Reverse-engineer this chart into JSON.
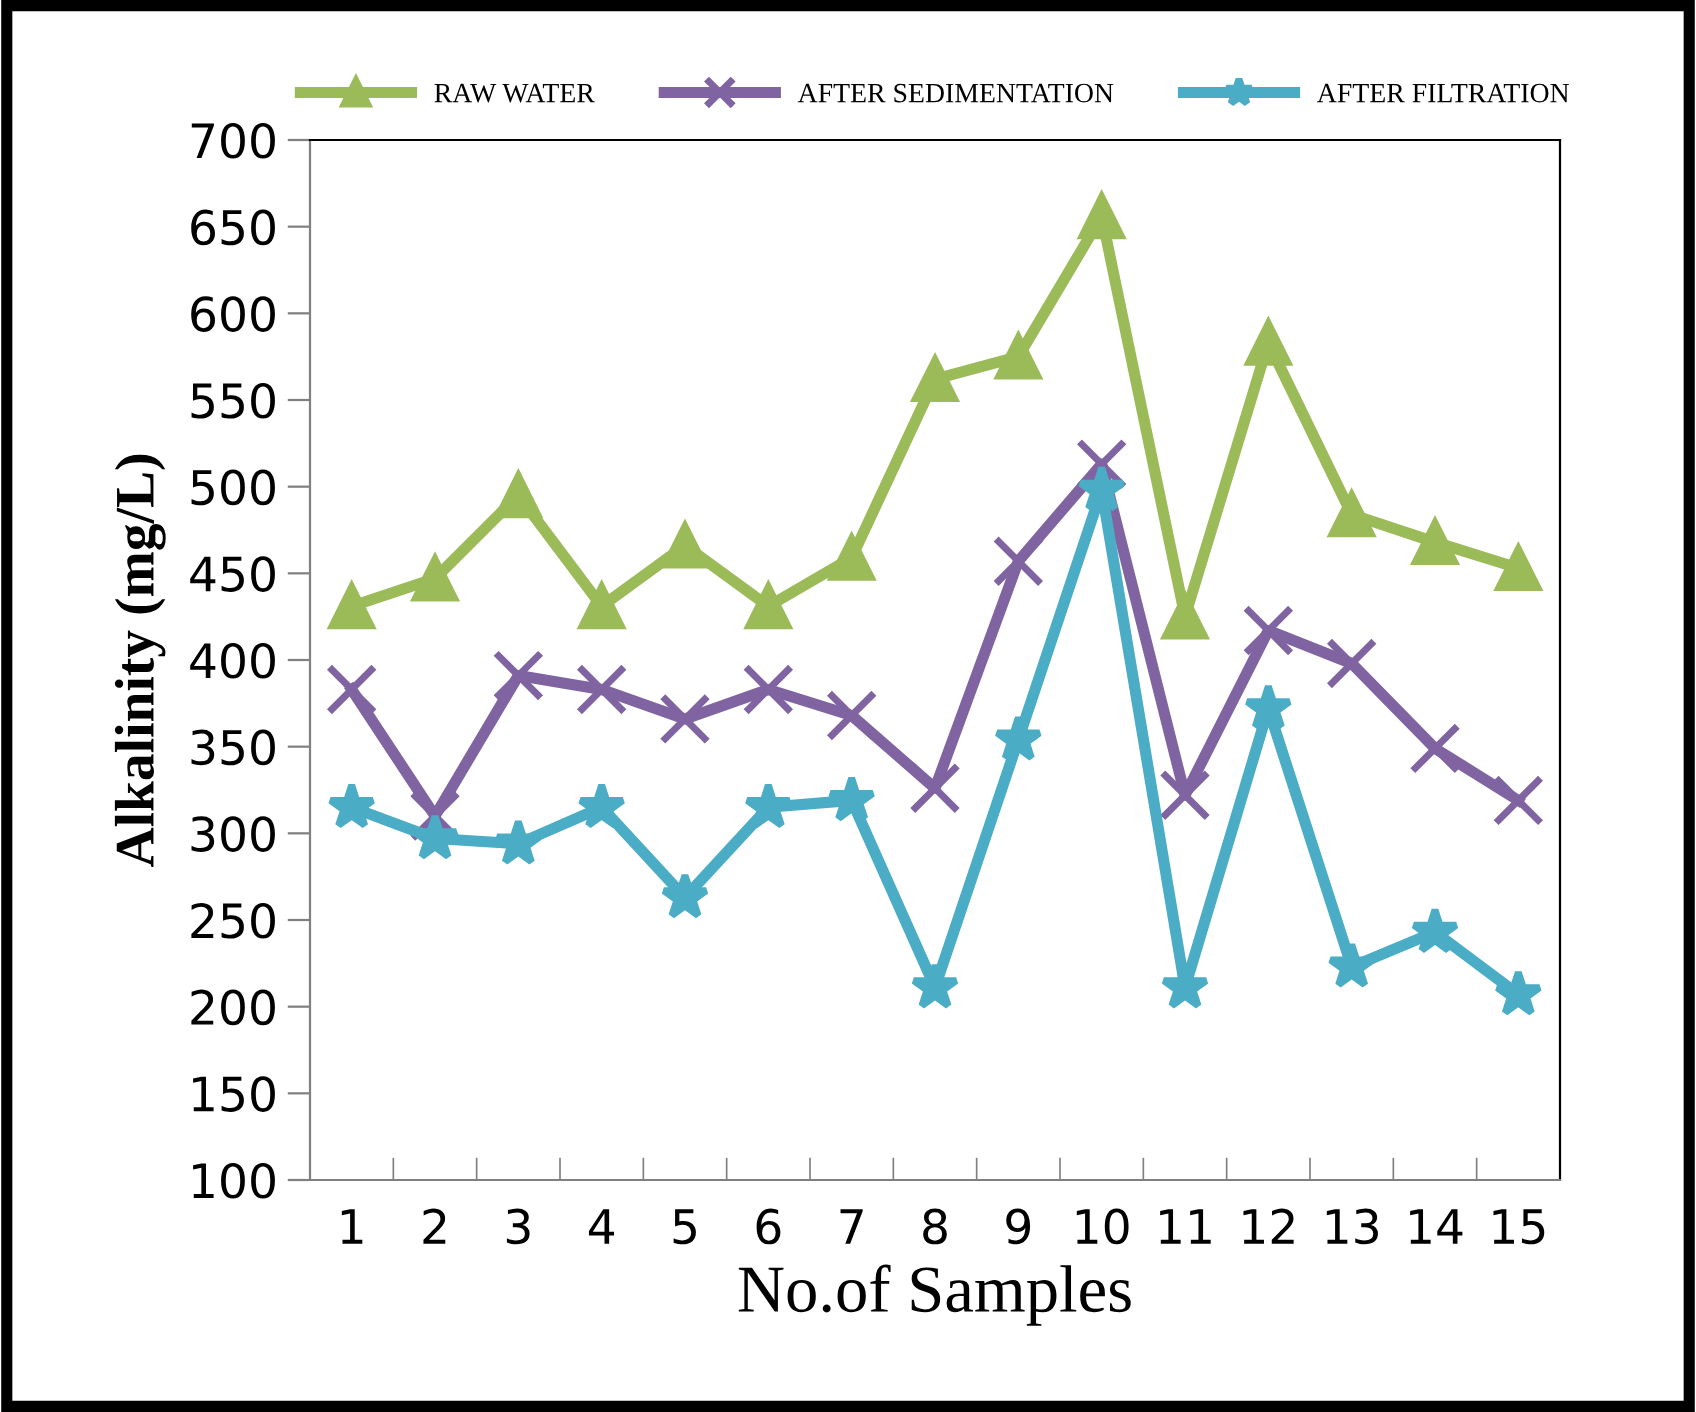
{
  "chart_data": {
    "type": "line",
    "xlabel": "No.of Samples",
    "ylabel": "Alkalinity (mg/L)",
    "categories": [
      "1",
      "2",
      "3",
      "4",
      "5",
      "6",
      "7",
      "8",
      "9",
      "10",
      "11",
      "12",
      "13",
      "14",
      "15"
    ],
    "series": [
      {
        "name": "RAW WATER",
        "color": "#9bbb59",
        "marker": "triangle",
        "values": [
          431,
          447,
          495,
          431,
          466,
          431,
          459,
          562,
          575,
          656,
          425,
          583,
          484,
          468,
          453
        ]
      },
      {
        "name": "AFTER SEDIMENTATION",
        "color": "#8064a2",
        "marker": "cross",
        "values": [
          383,
          310,
          391,
          383,
          366,
          383,
          368,
          326,
          457,
          513,
          322,
          417,
          398,
          349,
          319
        ]
      },
      {
        "name": "AFTER FILTRATION",
        "color": "#4bacc6",
        "marker": "star",
        "values": [
          315,
          297,
          294,
          315,
          263,
          315,
          319,
          211,
          354,
          498,
          211,
          372,
          223,
          243,
          207
        ]
      }
    ],
    "ylim": [
      100,
      700
    ],
    "yticks": [
      100,
      150,
      200,
      250,
      300,
      350,
      400,
      450,
      500,
      550,
      600,
      650,
      700
    ],
    "grid": false,
    "legend": "top",
    "line_style": "solid"
  }
}
